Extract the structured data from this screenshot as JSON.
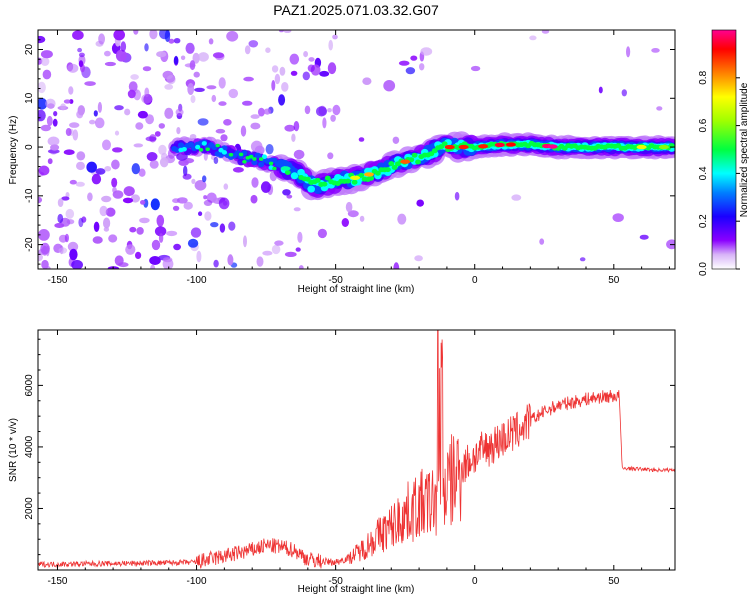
{
  "figure": {
    "title": "PAZ1.2025.071.03.32.G07"
  },
  "chart_data": [
    {
      "type": "heatmap",
      "name": "spectrogram",
      "title": "PAZ1.2025.071.03.32.G07",
      "xlabel": "Height of straight line (km)",
      "ylabel": "Frequency (Hz)",
      "xlim": [
        -157,
        72
      ],
      "ylim": [
        -25,
        24
      ],
      "xticks": [
        -150,
        -100,
        -50,
        0,
        50
      ],
      "yticks": [
        -20,
        -10,
        0,
        10,
        20
      ],
      "colorbar": {
        "label": "Normalized spectral amplitude",
        "range": [
          0,
          1
        ],
        "ticks": [
          0.0,
          0.2,
          0.4,
          0.6,
          0.8
        ],
        "tick_labels": [
          "0.0",
          "0.2",
          "0.4",
          "0.6",
          "0.8"
        ],
        "colormap": "rainbow (white-violet-blue-cyan-green-yellow-red-magenta)"
      },
      "ridge": {
        "x": [
          -105,
          -95,
          -85,
          -75,
          -65,
          -58,
          -50,
          -40,
          -30,
          -20,
          -12,
          -5,
          0,
          10,
          20,
          30,
          40,
          50,
          60,
          72
        ],
        "y": [
          0,
          0,
          -2,
          -3,
          -5,
          -8,
          -7,
          -6,
          -4,
          -2,
          0,
          0,
          0,
          0.5,
          0.5,
          0,
          0,
          0,
          0,
          0
        ]
      },
      "grid": false
    },
    {
      "type": "line",
      "name": "snr",
      "xlabel": "Height of straight line (km)",
      "ylabel": "SNR (10 * v/v)",
      "xlim": [
        -157,
        72
      ],
      "ylim": [
        0,
        7800
      ],
      "xticks": [
        -150,
        -100,
        -50,
        0,
        50
      ],
      "yticks": [
        2000,
        4000,
        6000
      ],
      "color": "#ee3333",
      "series": [
        {
          "x": [
            -157,
            -140,
            -120,
            -100,
            -90,
            -80,
            -75,
            -70,
            -65,
            -60,
            -55,
            -50,
            -45,
            -40,
            -35,
            -30,
            -25,
            -20,
            -15,
            -12,
            -10,
            -8,
            -5,
            0,
            5,
            10,
            15,
            20,
            25,
            30,
            35,
            40,
            45,
            50,
            52,
            53,
            55,
            60,
            65,
            72
          ],
          "y": [
            180,
            200,
            220,
            250,
            450,
            650,
            800,
            750,
            650,
            350,
            280,
            250,
            400,
            700,
            1100,
            1400,
            1800,
            2100,
            2200,
            2500,
            2700,
            2900,
            3300,
            3700,
            4000,
            4250,
            4500,
            4850,
            5150,
            5350,
            5450,
            5550,
            5620,
            5650,
            5650,
            3300,
            3300,
            3280,
            3250,
            3250
          ]
        }
      ],
      "grid": false
    }
  ]
}
